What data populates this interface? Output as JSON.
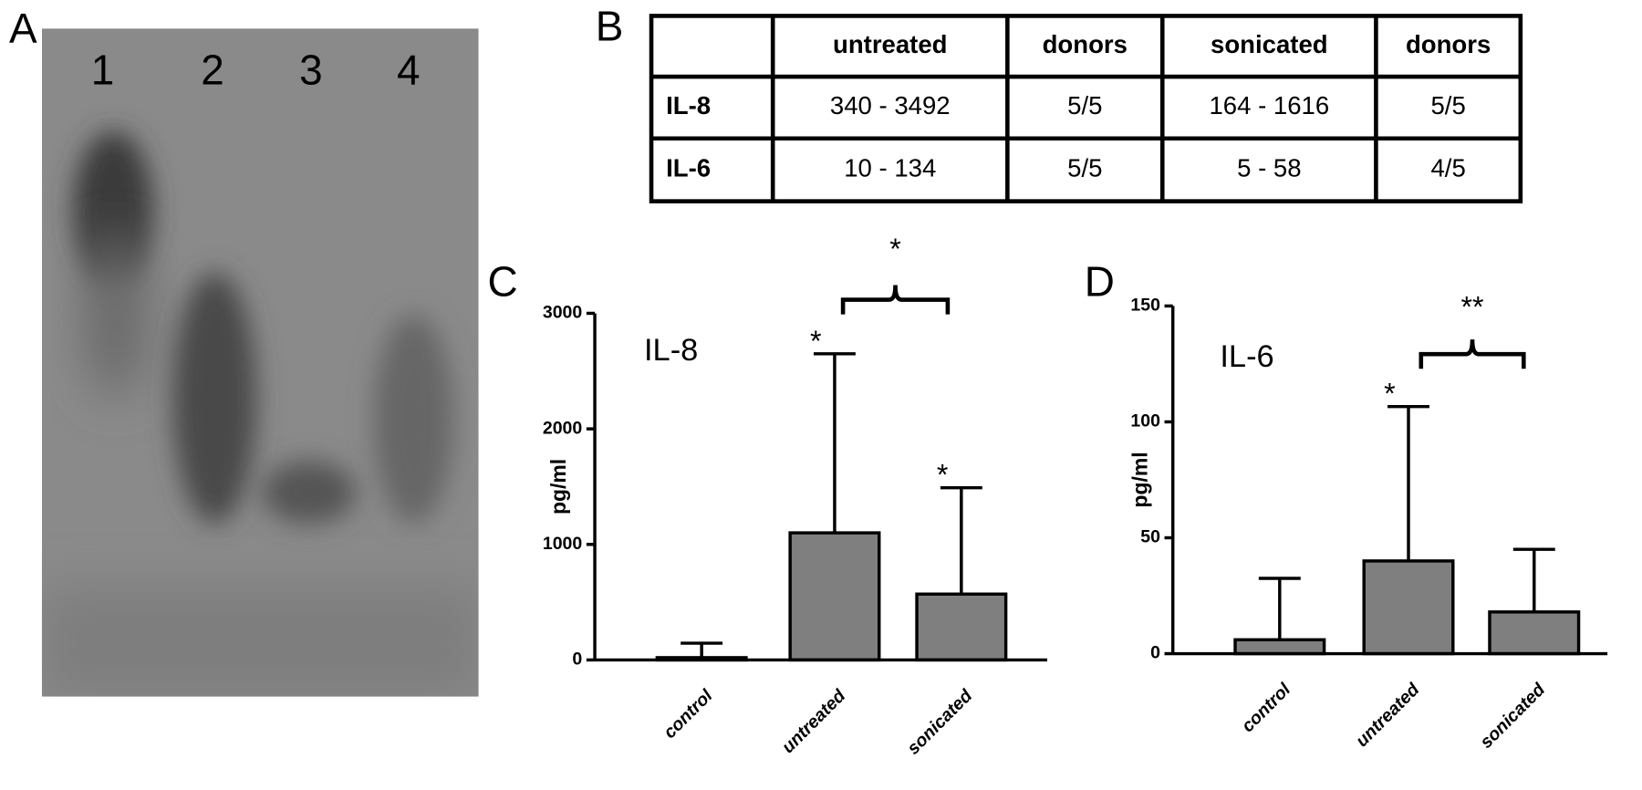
{
  "panels": [
    "A",
    "B",
    "C",
    "D"
  ],
  "gel": {
    "lanes": [
      "1",
      "2",
      "3",
      "4"
    ]
  },
  "table": {
    "columns": [
      "untreated",
      "donors",
      "sonicated",
      "donors"
    ],
    "rows": [
      {
        "label": "IL-8",
        "cells": [
          "340 - 3492",
          "5/5",
          "164 - 1616",
          "5/5"
        ]
      },
      {
        "label": "IL-6",
        "cells": [
          "10 - 134",
          "5/5",
          "5 - 58",
          "4/5"
        ]
      }
    ]
  },
  "chart_data": [
    {
      "type": "bar",
      "inset_label": "IL-8",
      "ylabel": "pg/ml",
      "categories": [
        "control",
        "untreated",
        "sonicated"
      ],
      "values": [
        20,
        1100,
        570
      ],
      "errors": [
        125,
        1550,
        920
      ],
      "color": "#7f7f7f",
      "significance": [
        null,
        "*",
        "*"
      ],
      "bracket_label": "*",
      "ylim": [
        0,
        3000
      ],
      "yticks": [
        0,
        1000,
        2000,
        3000
      ]
    },
    {
      "type": "bar",
      "inset_label": "IL-6",
      "ylabel": "pg/ml",
      "categories": [
        "control",
        "untreated",
        "sonicated"
      ],
      "values": [
        6,
        40,
        18
      ],
      "errors": [
        26.5,
        66.6,
        27
      ],
      "color": "#7f7f7f",
      "significance": [
        null,
        "*",
        null
      ],
      "bracket_label": "**",
      "ylim": [
        0,
        150
      ],
      "yticks": [
        0,
        50,
        100,
        150
      ]
    }
  ]
}
